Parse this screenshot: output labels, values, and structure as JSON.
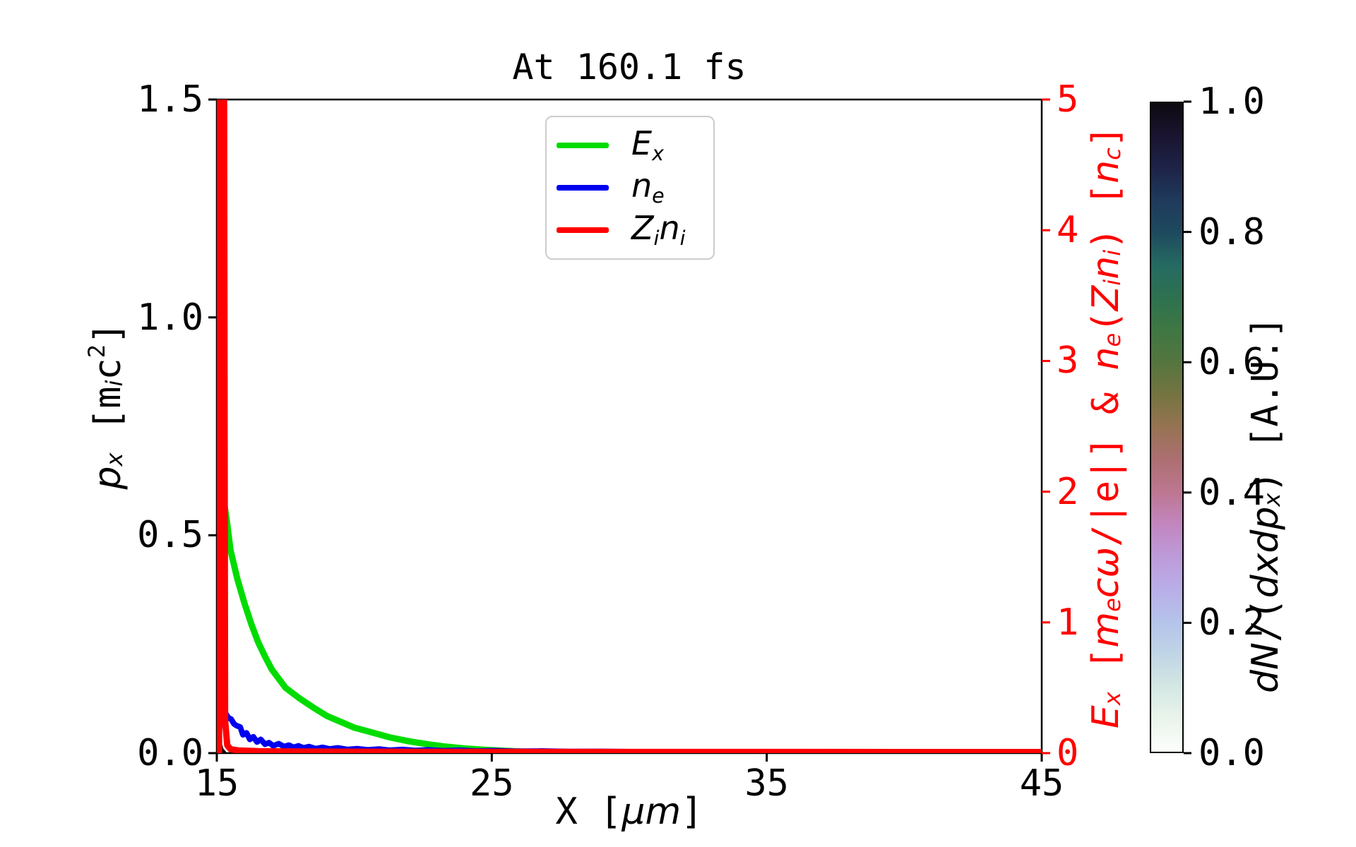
{
  "title": "At 160.1 fs",
  "colors": {
    "green": "#00dc00",
    "blue": "#0000f0",
    "red": "#ff0000",
    "black": "#000000",
    "legend_border": "#cccccc",
    "hist_blob": "#000000"
  },
  "labels": {
    "ylabel_left_segments": [
      {
        "t": "p",
        "f": "it"
      },
      {
        "t": "x",
        "f": "it",
        "p": "sub"
      },
      {
        "t": " [m"
      },
      {
        "t": "i",
        "f": "it",
        "p": "sub"
      },
      {
        "t": "c"
      },
      {
        "t": "2",
        "p": "sup"
      },
      {
        "t": "]"
      }
    ],
    "ylabel_right_segments": [
      {
        "t": "E",
        "f": "it"
      },
      {
        "t": "x",
        "f": "it",
        "p": "sub"
      },
      {
        "t": " ["
      },
      {
        "t": "m",
        "f": "it"
      },
      {
        "t": "e",
        "f": "it",
        "p": "sub"
      },
      {
        "t": "c",
        "f": "it"
      },
      {
        "t": "ω",
        "f": "it"
      },
      {
        "t": "/|e|] & "
      },
      {
        "t": "n",
        "f": "it"
      },
      {
        "t": "e",
        "f": "it",
        "p": "sub"
      },
      {
        "t": "("
      },
      {
        "t": "Z",
        "f": "it"
      },
      {
        "t": "i",
        "f": "it",
        "p": "sub"
      },
      {
        "t": "n",
        "f": "it"
      },
      {
        "t": "i",
        "f": "it",
        "p": "sub"
      },
      {
        "t": ") ["
      },
      {
        "t": "n",
        "f": "it"
      },
      {
        "t": "c",
        "f": "it",
        "p": "sub"
      },
      {
        "t": "]"
      }
    ],
    "xlabel_segments": [
      {
        "t": "X ["
      },
      {
        "t": "μ",
        "f": "it"
      },
      {
        "t": "m",
        "f": "it"
      },
      {
        "t": "]"
      }
    ],
    "colorbar_label_segments": [
      {
        "t": "d",
        "f": "it"
      },
      {
        "t": "N",
        "f": "it"
      },
      {
        "t": "/("
      },
      {
        "t": "d",
        "f": "it"
      },
      {
        "t": "x",
        "f": "it"
      },
      {
        "t": "d",
        "f": "it"
      },
      {
        "t": "p",
        "f": "it"
      },
      {
        "t": "x",
        "f": "it",
        "p": "sub"
      },
      {
        "t": ") [A.U.]"
      }
    ]
  },
  "legend": [
    {
      "key": "Ex",
      "color": "green",
      "segments": [
        {
          "t": "E",
          "f": "it"
        },
        {
          "t": "x",
          "f": "it",
          "p": "sub"
        }
      ]
    },
    {
      "key": "ne",
      "color": "blue",
      "segments": [
        {
          "t": "n",
          "f": "it"
        },
        {
          "t": "e",
          "f": "it",
          "p": "sub"
        }
      ]
    },
    {
      "key": "Zini",
      "color": "red",
      "segments": [
        {
          "t": "Z",
          "f": "it"
        },
        {
          "t": "i",
          "f": "it",
          "p": "sub"
        },
        {
          "t": "n",
          "f": "it"
        },
        {
          "t": "i",
          "f": "it",
          "p": "sub"
        }
      ]
    }
  ],
  "chart_data": {
    "type": "line",
    "title": "At 160.1 fs",
    "axes": {
      "x": {
        "lim": [
          15,
          45
        ],
        "ticks": [
          {
            "v": 15,
            "label": "15"
          },
          {
            "v": 25,
            "label": "25"
          },
          {
            "v": 35,
            "label": "35"
          },
          {
            "v": 45,
            "label": "45"
          }
        ],
        "label": "X [μm]"
      },
      "y_left": {
        "lim": [
          0,
          1.5
        ],
        "ticks": [
          {
            "v": 0.0,
            "label": "0.0"
          },
          {
            "v": 0.5,
            "label": "0.5"
          },
          {
            "v": 1.0,
            "label": "1.0"
          },
          {
            "v": 1.5,
            "label": "1.5"
          }
        ],
        "label": "p_x [m_i c^2]"
      },
      "y_right": {
        "lim": [
          0,
          5
        ],
        "ticks": [
          {
            "v": 0,
            "label": "0"
          },
          {
            "v": 1,
            "label": "1"
          },
          {
            "v": 2,
            "label": "2"
          },
          {
            "v": 3,
            "label": "3"
          },
          {
            "v": 4,
            "label": "4"
          },
          {
            "v": 5,
            "label": "5"
          }
        ],
        "label": "E_x [m_e c ω/|e|] & n_e(Z_i n_i) [n_c]",
        "color": "red"
      },
      "colorbar": {
        "lim": [
          0,
          1
        ],
        "ticks": [
          {
            "v": 0.0,
            "label": "0.0"
          },
          {
            "v": 0.2,
            "label": "0.2"
          },
          {
            "v": 0.4,
            "label": "0.4"
          },
          {
            "v": 0.6,
            "label": "0.6"
          },
          {
            "v": 0.8,
            "label": "0.8"
          },
          {
            "v": 1.0,
            "label": "1.0"
          }
        ],
        "label": "dN/(dxdp_x) [A.U.]"
      }
    },
    "grid": false,
    "legend_position": "upper center-left inside",
    "series": [
      {
        "name": "Ex",
        "color_key": "green",
        "axis": "right",
        "lw": 9,
        "points": [
          [
            15.05,
            0.0
          ],
          [
            15.1,
            0.7
          ],
          [
            15.15,
            1.7
          ],
          [
            15.2,
            2.0
          ],
          [
            15.35,
            1.8
          ],
          [
            15.5,
            1.55
          ],
          [
            15.75,
            1.33
          ],
          [
            16.0,
            1.15
          ],
          [
            16.25,
            0.99
          ],
          [
            16.5,
            0.85
          ],
          [
            16.75,
            0.74
          ],
          [
            17.0,
            0.64
          ],
          [
            17.5,
            0.5
          ],
          [
            18.0,
            0.42
          ],
          [
            18.5,
            0.35
          ],
          [
            19.0,
            0.285
          ],
          [
            19.5,
            0.24
          ],
          [
            20.0,
            0.195
          ],
          [
            20.7,
            0.155
          ],
          [
            21.3,
            0.12
          ],
          [
            22.0,
            0.09
          ],
          [
            22.7,
            0.067
          ],
          [
            23.3,
            0.05
          ],
          [
            24.0,
            0.036
          ],
          [
            24.7,
            0.026
          ],
          [
            25.4,
            0.018
          ],
          [
            26.2,
            0.011
          ],
          [
            27.0,
            0.007
          ],
          [
            28.0,
            0.004
          ],
          [
            29.5,
            0.002
          ],
          [
            31.0,
            0.001
          ],
          [
            45.0,
            0.0005
          ]
        ]
      },
      {
        "name": "ne",
        "color_key": "blue",
        "axis": "right",
        "lw": 8,
        "points": [
          [
            15.05,
            0.0
          ],
          [
            15.08,
            0.12
          ],
          [
            15.12,
            0.3
          ],
          [
            15.18,
            0.42
          ],
          [
            15.25,
            0.36
          ],
          [
            15.32,
            0.305
          ],
          [
            15.42,
            0.27
          ],
          [
            15.52,
            0.26
          ],
          [
            15.62,
            0.225
          ],
          [
            15.72,
            0.21
          ],
          [
            15.85,
            0.2
          ],
          [
            15.95,
            0.14
          ],
          [
            16.08,
            0.155
          ],
          [
            16.2,
            0.105
          ],
          [
            16.33,
            0.125
          ],
          [
            16.46,
            0.085
          ],
          [
            16.6,
            0.105
          ],
          [
            16.75,
            0.068
          ],
          [
            16.9,
            0.08
          ],
          [
            17.05,
            0.056
          ],
          [
            17.25,
            0.072
          ],
          [
            17.45,
            0.05
          ],
          [
            17.62,
            0.061
          ],
          [
            17.8,
            0.044
          ],
          [
            17.97,
            0.056
          ],
          [
            18.15,
            0.04
          ],
          [
            18.35,
            0.05
          ],
          [
            18.6,
            0.034
          ],
          [
            18.85,
            0.044
          ],
          [
            19.1,
            0.032
          ],
          [
            19.4,
            0.04
          ],
          [
            19.75,
            0.028
          ],
          [
            20.1,
            0.034
          ],
          [
            20.5,
            0.025
          ],
          [
            20.9,
            0.031
          ],
          [
            21.3,
            0.022
          ],
          [
            21.75,
            0.028
          ],
          [
            22.2,
            0.02
          ],
          [
            22.7,
            0.025
          ],
          [
            23.2,
            0.018
          ],
          [
            23.8,
            0.022
          ],
          [
            24.4,
            0.016
          ],
          [
            25.1,
            0.019
          ],
          [
            25.9,
            0.014
          ],
          [
            26.8,
            0.016
          ],
          [
            27.8,
            0.012
          ],
          [
            29.0,
            0.013
          ],
          [
            30.5,
            0.01
          ],
          [
            32.5,
            0.009
          ],
          [
            35.0,
            0.008
          ],
          [
            38.0,
            0.006
          ],
          [
            41.0,
            0.005
          ],
          [
            45.0,
            0.005
          ]
        ]
      },
      {
        "name": "Zini",
        "color_key": "red",
        "axis": "right",
        "lw": 9,
        "points": [
          [
            15.08,
            0.0
          ],
          [
            15.11,
            5.6
          ],
          [
            15.26,
            5.6
          ],
          [
            15.3,
            0.25
          ],
          [
            15.38,
            0.06
          ],
          [
            15.5,
            0.03
          ],
          [
            15.8,
            0.02
          ],
          [
            16.5,
            0.015
          ],
          [
            18.0,
            0.012
          ],
          [
            22.0,
            0.01
          ],
          [
            30.0,
            0.009
          ],
          [
            45.0,
            0.008
          ]
        ]
      }
    ],
    "phase_space_blob": {
      "axis": "left",
      "comment": "dN/(dxdp_x) histogram visible as small dark blob near x=15, p_x~0",
      "points": [
        [
          15.0,
          0.0
        ],
        [
          15.0,
          0.034
        ],
        [
          15.05,
          0.058
        ],
        [
          15.1,
          0.052
        ],
        [
          15.16,
          0.028
        ],
        [
          15.24,
          0.01
        ],
        [
          15.34,
          0.003
        ],
        [
          15.34,
          0.0
        ]
      ]
    },
    "colorbar_gradient": [
      {
        "p": 0.0,
        "c": "#fdfefc"
      },
      {
        "p": 0.05,
        "c": "#eaf4eb"
      },
      {
        "p": 0.1,
        "c": "#d4e7e3"
      },
      {
        "p": 0.15,
        "c": "#c0d5e6"
      },
      {
        "p": 0.2,
        "c": "#b5c3ea"
      },
      {
        "p": 0.25,
        "c": "#b9aee8"
      },
      {
        "p": 0.3,
        "c": "#bd9bd9"
      },
      {
        "p": 0.35,
        "c": "#c286c0"
      },
      {
        "p": 0.4,
        "c": "#bd7791"
      },
      {
        "p": 0.45,
        "c": "#ad6f72"
      },
      {
        "p": 0.5,
        "c": "#967353"
      },
      {
        "p": 0.55,
        "c": "#757440"
      },
      {
        "p": 0.6,
        "c": "#55753f"
      },
      {
        "p": 0.65,
        "c": "#3f7743"
      },
      {
        "p": 0.7,
        "c": "#2e7150"
      },
      {
        "p": 0.75,
        "c": "#256a62"
      },
      {
        "p": 0.8,
        "c": "#1e4a5e"
      },
      {
        "p": 0.85,
        "c": "#1f3a5c"
      },
      {
        "p": 0.9,
        "c": "#1d2347"
      },
      {
        "p": 0.95,
        "c": "#1a1430"
      },
      {
        "p": 1.0,
        "c": "#0d0a10"
      }
    ]
  }
}
